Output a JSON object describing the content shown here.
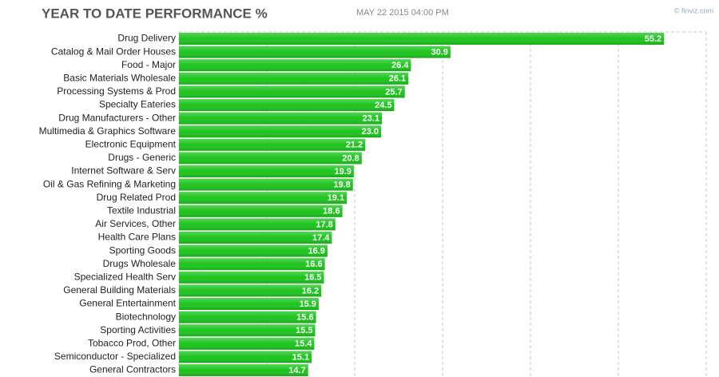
{
  "chart_data": {
    "type": "hbar",
    "title": "YEAR TO DATE PERFORMANCE %",
    "subtitle": "MAY 22 2015 04:00 PM",
    "source": "© finviz.com",
    "categories": [
      "Drug Delivery",
      "Catalog & Mail Order Houses",
      "Food - Major",
      "Basic Materials Wholesale",
      "Processing Systems & Prod",
      "Specialty Eateries",
      "Drug Manufacturers - Other",
      "Multimedia & Graphics Software",
      "Electronic Equipment",
      "Drugs - Generic",
      "Internet Software & Serv",
      "Oil & Gas Refining & Marketing",
      "Drug Related Prod",
      "Textile Industrial",
      "Air Services, Other",
      "Health Care Plans",
      "Sporting Goods",
      "Drugs Wholesale",
      "Specialized Health Serv",
      "General Building Materials",
      "General Entertainment",
      "Biotechnology",
      "Sporting Activities",
      "Tobacco Prod, Other",
      "Semiconductor - Specialized",
      "General Contractors"
    ],
    "values": [
      55.2,
      30.9,
      26.4,
      26.1,
      25.7,
      24.5,
      23.1,
      23.0,
      21.2,
      20.8,
      19.9,
      19.8,
      19.1,
      18.6,
      17.8,
      17.4,
      16.9,
      16.6,
      16.5,
      16.2,
      15.9,
      15.6,
      15.5,
      15.4,
      15.1,
      14.7
    ],
    "value_labels": [
      "55.2",
      "30.9",
      "26.4",
      "26.1",
      "25.7",
      "24.5",
      "23.1",
      "23.0",
      "21.2",
      "20.8",
      "19.9",
      "19.8",
      "19.1",
      "18.6",
      "17.8",
      "17.4",
      "16.9",
      "16.6",
      "16.5",
      "16.2",
      "15.9",
      "15.6",
      "15.5",
      "15.4",
      "15.1",
      "14.7"
    ],
    "color": "#1ec41e",
    "xlim": [
      0,
      60
    ],
    "xticks": [
      0,
      10,
      20,
      30,
      40,
      50,
      60
    ],
    "grid": true
  }
}
